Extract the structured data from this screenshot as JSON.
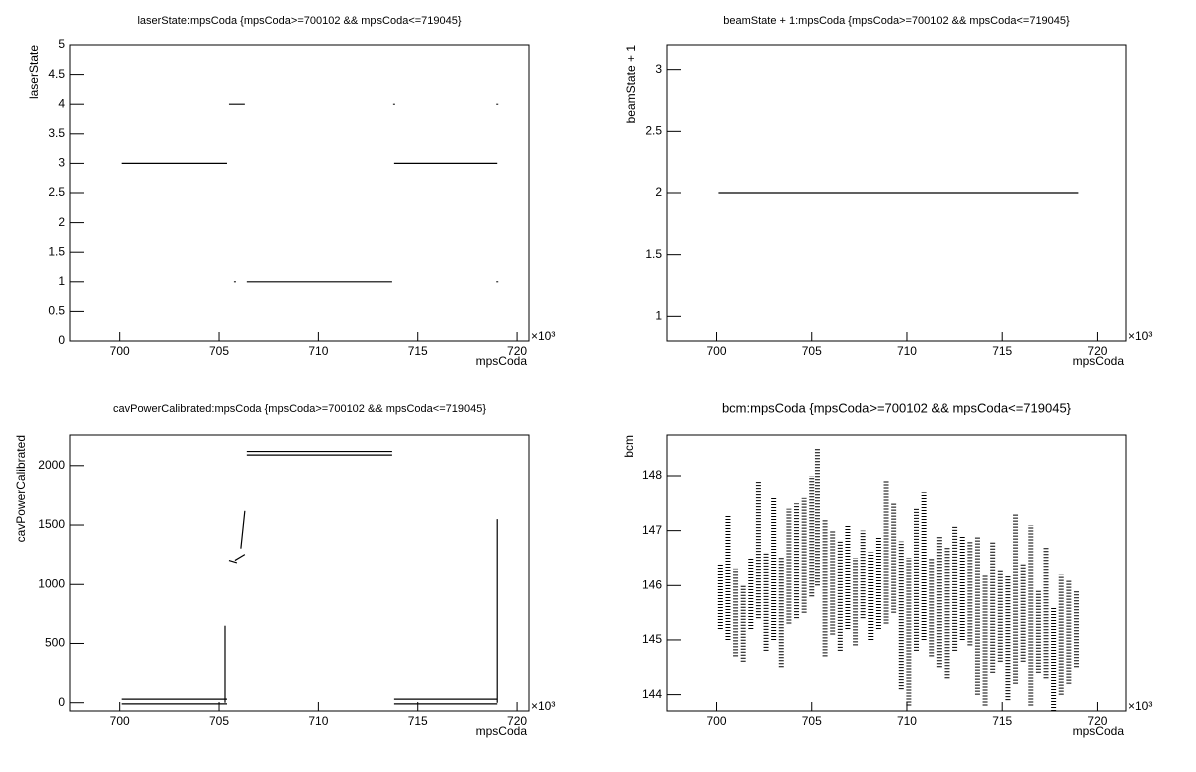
{
  "chart_data": [
    {
      "type": "line",
      "title": "laserState:mpsCoda {mpsCoda>=700102 && mpsCoda<=719045}",
      "xlabel": "mpsCoda",
      "ylabel": "laserState",
      "xmultiplier": "×10³",
      "xlim": [
        697.5,
        720.6
      ],
      "ylim": [
        0,
        5
      ],
      "xticks": [
        700,
        705,
        710,
        715,
        720
      ],
      "yticks": [
        0,
        0.5,
        1,
        1.5,
        2,
        2.5,
        3,
        3.5,
        4,
        4.5,
        5
      ],
      "color": "#000000",
      "x": [
        700.1,
        705.4,
        null,
        705.5,
        706.3,
        null,
        705.8,
        null,
        706.4,
        713.7,
        null,
        713.8,
        719.0,
        null,
        713.8,
        null,
        719.0,
        null,
        719.0
      ],
      "y": [
        3,
        3,
        null,
        4,
        4,
        null,
        1,
        null,
        1,
        1,
        null,
        3,
        3,
        null,
        4,
        null,
        4,
        null,
        1
      ]
    },
    {
      "type": "line",
      "title": "beamState + 1:mpsCoda {mpsCoda>=700102 && mpsCoda<=719045}",
      "xlabel": "mpsCoda",
      "ylabel": "beamState + 1",
      "xmultiplier": "×10³",
      "xlim": [
        697.4,
        721.5
      ],
      "ylim": [
        0.8,
        3.2
      ],
      "xticks": [
        700,
        705,
        710,
        715,
        720
      ],
      "yticks": [
        1,
        1.5,
        2,
        2.5,
        3
      ],
      "color": "#000000",
      "x": [
        700.1,
        719.0
      ],
      "y": [
        2,
        2
      ]
    },
    {
      "type": "line",
      "title": "cavPowerCalibrated:mpsCoda {mpsCoda>=700102 && mpsCoda<=719045}",
      "xlabel": "mpsCoda",
      "ylabel": "cavPowerCalibrated",
      "xmultiplier": "×10³",
      "xlim": [
        697.5,
        720.6
      ],
      "ylim": [
        -70,
        2260
      ],
      "xticks": [
        700,
        705,
        710,
        715,
        720
      ],
      "yticks": [
        0,
        500,
        1000,
        1500,
        2000
      ],
      "color": "#000000",
      "x": [
        700.1,
        705.4,
        null,
        700.1,
        705.4,
        null,
        705.3,
        705.3,
        null,
        705.5,
        705.9,
        null,
        705.8,
        706.3,
        null,
        706.1,
        706.3,
        null,
        706.4,
        713.7,
        null,
        706.4,
        713.7,
        null,
        713.8,
        719.0,
        null,
        713.8,
        719.0,
        null,
        719.0,
        719.0
      ],
      "y": [
        30,
        30,
        null,
        -10,
        -10,
        null,
        0,
        650,
        null,
        1200,
        1180,
        null,
        1200,
        1250,
        null,
        1300,
        1620,
        null,
        2090,
        2090,
        null,
        2120,
        2120,
        null,
        30,
        30,
        null,
        -10,
        -10,
        null,
        0,
        1550
      ]
    },
    {
      "type": "line",
      "title": "bcm:mpsCoda {mpsCoda>=700102 && mpsCoda<=719045}",
      "xlabel": "mpsCoda",
      "ylabel": "bcm",
      "xmultiplier": "×10³",
      "xlim": [
        697.4,
        721.5
      ],
      "ylim": [
        143.7,
        148.75
      ],
      "xticks": [
        700,
        705,
        710,
        715,
        720
      ],
      "yticks": [
        144,
        145,
        146,
        147,
        148
      ],
      "color": "#000000",
      "line_style": "dotted",
      "x": [
        700.2,
        700.2,
        null,
        700.6,
        700.6,
        null,
        701.0,
        701.0,
        null,
        701.4,
        701.4,
        null,
        701.8,
        701.8,
        null,
        702.2,
        702.2,
        null,
        702.6,
        702.6,
        null,
        703.0,
        703.0,
        null,
        703.4,
        703.4,
        null,
        703.8,
        703.8,
        null,
        704.2,
        704.2,
        null,
        704.6,
        704.6,
        null,
        705.0,
        705.0,
        null,
        705.3,
        705.3,
        null,
        705.7,
        705.7,
        null,
        706.1,
        706.1,
        null,
        706.5,
        706.5,
        null,
        706.9,
        706.9,
        null,
        707.3,
        707.3,
        null,
        707.7,
        707.7,
        null,
        708.1,
        708.1,
        null,
        708.5,
        708.5,
        null,
        708.9,
        708.9,
        null,
        709.3,
        709.3,
        null,
        709.7,
        709.7,
        null,
        710.1,
        710.1,
        null,
        710.5,
        710.5,
        null,
        710.9,
        710.9,
        null,
        711.3,
        711.3,
        null,
        711.7,
        711.7,
        null,
        712.1,
        712.1,
        null,
        712.5,
        712.5,
        null,
        712.9,
        712.9,
        null,
        713.3,
        713.3,
        null,
        713.7,
        713.7,
        null,
        714.1,
        714.1,
        null,
        714.5,
        714.5,
        null,
        714.9,
        714.9,
        null,
        715.3,
        715.3,
        null,
        715.7,
        715.7,
        null,
        716.1,
        716.1,
        null,
        716.5,
        716.5,
        null,
        716.9,
        716.9,
        null,
        717.3,
        717.3,
        null,
        717.7,
        717.7,
        null,
        718.1,
        718.1,
        null,
        718.5,
        718.5,
        null,
        718.9,
        718.9
      ],
      "y": [
        145.2,
        146.4,
        null,
        145.0,
        147.3,
        null,
        144.7,
        146.3,
        null,
        144.6,
        146.0,
        null,
        145.2,
        146.5,
        null,
        145.4,
        147.9,
        null,
        144.8,
        146.6,
        null,
        145.0,
        147.6,
        null,
        144.5,
        146.5,
        null,
        145.3,
        147.4,
        null,
        145.4,
        147.5,
        null,
        145.5,
        147.6,
        null,
        145.8,
        148.0,
        null,
        146.0,
        148.5,
        null,
        144.7,
        147.2,
        null,
        145.1,
        147.0,
        null,
        144.8,
        146.8,
        null,
        145.2,
        147.1,
        null,
        144.9,
        146.5,
        null,
        145.4,
        147.0,
        null,
        145.0,
        146.6,
        null,
        145.2,
        146.9,
        null,
        145.3,
        147.9,
        null,
        145.5,
        147.5,
        null,
        144.1,
        146.8,
        null,
        143.8,
        146.5,
        null,
        144.8,
        147.4,
        null,
        145.0,
        147.7,
        null,
        144.7,
        146.5,
        null,
        144.5,
        146.9,
        null,
        144.3,
        146.7,
        null,
        144.8,
        147.1,
        null,
        145.0,
        146.9,
        null,
        144.9,
        146.8,
        null,
        144.0,
        146.9,
        null,
        143.8,
        146.2,
        null,
        144.4,
        146.8,
        null,
        144.6,
        146.3,
        null,
        143.9,
        146.2,
        null,
        144.2,
        147.3,
        null,
        144.6,
        146.4,
        null,
        143.8,
        147.1,
        null,
        144.4,
        145.9,
        null,
        144.3,
        146.7,
        null,
        143.7,
        145.6,
        null,
        144.0,
        146.2,
        null,
        144.2,
        146.1,
        null,
        144.5,
        145.9
      ]
    }
  ]
}
